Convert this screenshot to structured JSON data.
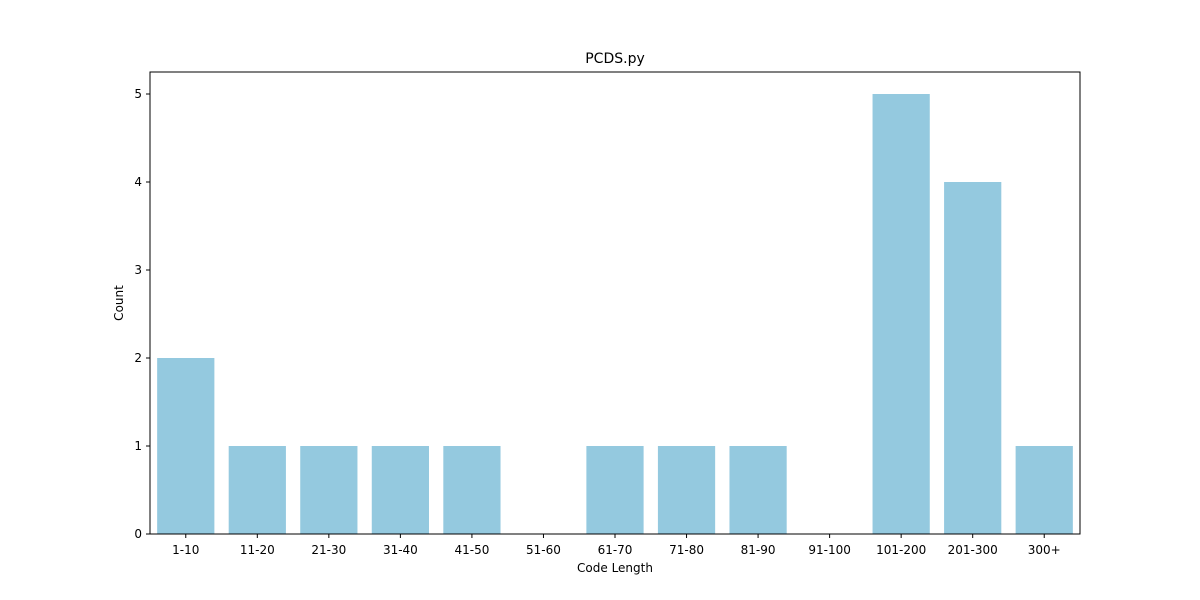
{
  "chart_data": {
    "type": "bar",
    "title": "PCDS.py",
    "xlabel": "Code Length",
    "ylabel": "Count",
    "categories": [
      "1-10",
      "11-20",
      "21-30",
      "31-40",
      "41-50",
      "51-60",
      "61-70",
      "71-80",
      "81-90",
      "91-100",
      "101-200",
      "201-300",
      "300+"
    ],
    "values": [
      2,
      1,
      1,
      1,
      1,
      0,
      1,
      1,
      1,
      0,
      5,
      4,
      1
    ],
    "ylim": [
      0,
      5.25
    ],
    "yticks": [
      0,
      1,
      2,
      3,
      4,
      5
    ],
    "grid": false,
    "legend": "none",
    "bar_color": "#94c9df"
  }
}
